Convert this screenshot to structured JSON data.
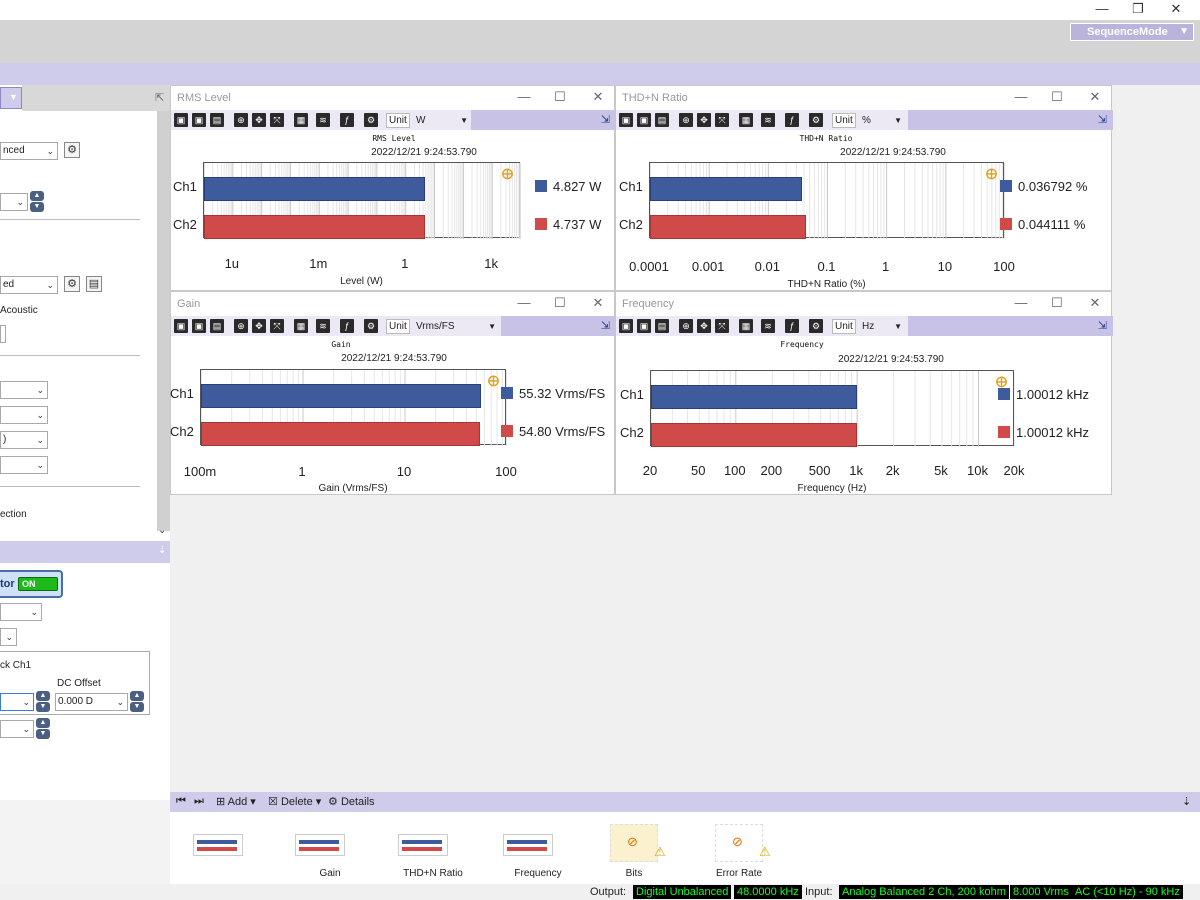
{
  "window": {
    "min_icon": "—",
    "restore_icon": "❐",
    "close_icon": "✕"
  },
  "header": {
    "mode_label": "SequenceMode"
  },
  "left_panel": {
    "combo_1": "nced",
    "combo_2": "",
    "combo_3": "ed",
    "acoustic_label": "Acoustic",
    "combo_4": ")",
    "section_label": "ection",
    "generator_label": "tor",
    "generator_state": "ON",
    "track_label": "ck Ch1",
    "dc_offset_label": "DC Offset",
    "dc_offset_value": "0.000 D"
  },
  "panels": [
    {
      "title": "RMS Level",
      "unit_label": "Unit",
      "unit": "W",
      "chart_data": {
        "type": "bar",
        "orientation": "horizontal",
        "title": "RMS Level",
        "timestamp": "2022/12/21 9:24:53.790",
        "xlabel": "Level (W)",
        "xscale": "log",
        "xlim": [
          1e-07,
          10000
        ],
        "xticks": [
          "1u",
          "1m",
          "1",
          "1k"
        ],
        "categories": [
          "Ch1",
          "Ch2"
        ],
        "values": [
          4.827,
          4.737
        ],
        "value_labels": [
          "4.827 W",
          "4.737 W"
        ],
        "colors": [
          "#3e5b9e",
          "#d04a4a"
        ]
      }
    },
    {
      "title": "THD+N Ratio",
      "unit_label": "Unit",
      "unit": "%",
      "chart_data": {
        "type": "bar",
        "orientation": "horizontal",
        "title": "THD+N Ratio",
        "timestamp": "2022/12/21 9:24:53.790",
        "xlabel": "THD+N Ratio (%)",
        "xscale": "log",
        "xlim": [
          0.0001,
          100
        ],
        "xticks": [
          "0.0001",
          "0.001",
          "0.01",
          "0.1",
          "1",
          "10",
          "100"
        ],
        "categories": [
          "Ch1",
          "Ch2"
        ],
        "values": [
          0.036792,
          0.044111
        ],
        "value_labels": [
          "0.036792 %",
          "0.044111 %"
        ],
        "colors": [
          "#3e5b9e",
          "#d04a4a"
        ]
      }
    },
    {
      "title": "Gain",
      "unit_label": "Unit",
      "unit": "Vrms/FS",
      "chart_data": {
        "type": "bar",
        "orientation": "horizontal",
        "title": "Gain",
        "timestamp": "2022/12/21 9:24:53.790",
        "xlabel": "Gain (Vrms/FS)",
        "xscale": "log",
        "xlim": [
          0.1,
          100
        ],
        "xticks": [
          "100m",
          "1",
          "10",
          "100"
        ],
        "categories": [
          "Ch1",
          "Ch2"
        ],
        "values": [
          55.32,
          54.8
        ],
        "value_labels": [
          "55.32 Vrms/FS",
          "54.80 Vrms/FS"
        ],
        "colors": [
          "#3e5b9e",
          "#d04a4a"
        ]
      }
    },
    {
      "title": "Frequency",
      "unit_label": "Unit",
      "unit": "Hz",
      "chart_data": {
        "type": "bar",
        "orientation": "horizontal",
        "title": "Frequency",
        "timestamp": "2022/12/21 9:24:53.790",
        "xlabel": "Frequency (Hz)",
        "xscale": "log",
        "xlim": [
          20,
          20000
        ],
        "xticks": [
          "20",
          "50",
          "100",
          "200",
          "500",
          "1k",
          "2k",
          "5k",
          "10k",
          "20k"
        ],
        "categories": [
          "Ch1",
          "Ch2"
        ],
        "values": [
          1000.12,
          1000.12
        ],
        "value_labels": [
          "1.00012 kHz",
          "1.00012 kHz"
        ],
        "colors": [
          "#3e5b9e",
          "#d04a4a"
        ]
      }
    }
  ],
  "bottom_toolbar": {
    "add": "Add",
    "delete": "Delete",
    "details": "Details"
  },
  "thumbnails": [
    {
      "label": ""
    },
    {
      "label": "Gain"
    },
    {
      "label": "THD+N Ratio"
    },
    {
      "label": "Frequency"
    },
    {
      "label": "Bits"
    },
    {
      "label": "Error Rate"
    }
  ],
  "status": {
    "output_label": "Output:",
    "output_value": "Digital Unbalanced",
    "output_rate": "48.0000 kHz",
    "input_label": "Input:",
    "input_value": "Analog Balanced 2 Ch, 200 kohm",
    "input_range": "8.000 Vrms",
    "input_filter": "AC (<10 Hz) - 90 kHz"
  }
}
